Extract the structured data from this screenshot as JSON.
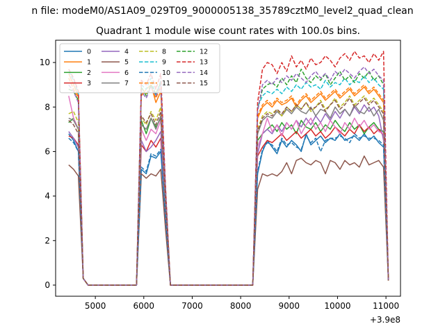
{
  "suptitle": "n file: modeM0/AS1A09_029T09_9000005138_35789cztM0_level2_quad_clean",
  "chart_data": {
    "type": "line",
    "title": "Quadrant 1 module wise count rates with 100.0s bins.",
    "xlabel": "",
    "ylabel": "",
    "x_offset_label": "+3.9e8",
    "xlim": [
      4180,
      11300
    ],
    "ylim": [
      -0.5,
      11.0
    ],
    "xticks": [
      5000,
      6000,
      7000,
      8000,
      9000,
      10000,
      11000
    ],
    "yticks": [
      0,
      2,
      4,
      6,
      8,
      10
    ],
    "grid": false,
    "legend": {
      "placement": "top-left",
      "columns": 4
    },
    "segments": {
      "seg1": [
        4450,
        4550,
        4650
      ],
      "seg2": [
        5950,
        6050,
        6150,
        6250,
        6350,
        6450
      ],
      "seg3": [
        8350,
        8450,
        8550,
        8650,
        8750,
        8850,
        8950,
        9050,
        9150,
        9250,
        9350,
        9450,
        9550,
        9650,
        9750,
        9850,
        9950,
        10050,
        10150,
        10250,
        10350,
        10450,
        10550,
        10650,
        10750,
        10850,
        10950
      ]
    },
    "series": [
      {
        "name": "0",
        "color": "#1f77b4",
        "dash": false,
        "seg1": [
          6.8,
          6.5,
          6.0
        ],
        "seg2": [
          5.2,
          5.0,
          5.8,
          5.7,
          6.0,
          3.0
        ],
        "seg3": [
          5.0,
          6.0,
          6.5,
          6.2,
          5.9,
          6.5,
          6.2,
          6.5,
          6.3,
          6.0,
          6.8,
          6.3,
          6.5,
          6.7,
          6.4,
          6.6,
          6.5,
          6.8,
          6.5,
          6.6,
          6.7,
          6.5,
          6.8,
          6.5,
          6.7,
          6.4,
          6.2
        ]
      },
      {
        "name": "1",
        "color": "#ff7f0e",
        "dash": false,
        "seg1": [
          9.5,
          9.0,
          8.5
        ],
        "seg2": [
          8.5,
          8.8,
          9.0,
          8.2,
          8.7,
          4.0
        ],
        "seg3": [
          7.5,
          8.0,
          8.2,
          8.0,
          8.3,
          8.1,
          8.2,
          8.4,
          8.0,
          8.3,
          8.5,
          8.2,
          8.4,
          8.6,
          8.3,
          8.5,
          8.7,
          8.4,
          8.6,
          8.8,
          8.5,
          8.7,
          8.9,
          8.6,
          8.8,
          8.5,
          8.2
        ]
      },
      {
        "name": "2",
        "color": "#2ca02c",
        "dash": false,
        "seg1": [
          7.3,
          7.5,
          7.0
        ],
        "seg2": [
          7.4,
          6.8,
          7.5,
          7.1,
          7.5,
          3.5
        ],
        "seg3": [
          6.5,
          6.8,
          7.0,
          7.2,
          6.9,
          7.3,
          7.0,
          7.2,
          6.8,
          7.4,
          7.1,
          7.0,
          7.3,
          6.9,
          7.2,
          7.0,
          7.4,
          7.1,
          6.9,
          7.3,
          7.0,
          7.2,
          6.8,
          7.1,
          7.3,
          7.0,
          6.9
        ]
      },
      {
        "name": "3",
        "color": "#d62728",
        "dash": false,
        "seg1": [
          6.7,
          6.6,
          6.3
        ],
        "seg2": [
          6.3,
          6.0,
          6.5,
          6.2,
          6.6,
          3.2
        ],
        "seg3": [
          5.8,
          6.2,
          6.5,
          6.4,
          6.6,
          6.8,
          6.5,
          6.7,
          6.9,
          6.6,
          6.8,
          7.0,
          6.7,
          6.9,
          6.6,
          6.8,
          7.1,
          6.9,
          6.7,
          7.0,
          6.8,
          7.2,
          6.9,
          7.1,
          6.8,
          7.0,
          6.7
        ]
      },
      {
        "name": "4",
        "color": "#9467bd",
        "dash": false,
        "seg1": [
          6.9,
          6.6,
          6.2
        ],
        "seg2": [
          6.5,
          6.0,
          6.2,
          6.5,
          6.9,
          3.2
        ],
        "seg3": [
          5.9,
          6.8,
          7.0,
          6.8,
          7.2,
          6.9,
          7.3,
          7.0,
          7.4,
          7.1,
          7.5,
          7.2,
          7.6,
          7.3,
          7.7,
          7.4,
          7.8,
          7.5,
          7.9,
          7.6,
          8.0,
          7.7,
          8.1,
          7.8,
          8.0,
          7.6,
          6.5
        ]
      },
      {
        "name": "5",
        "color": "#8c564b",
        "dash": false,
        "seg1": [
          5.4,
          5.2,
          4.9
        ],
        "seg2": [
          5.0,
          4.8,
          5.0,
          4.9,
          5.2,
          2.5
        ],
        "seg3": [
          4.3,
          5.0,
          4.9,
          5.0,
          4.9,
          5.1,
          5.5,
          5.0,
          5.6,
          5.7,
          5.5,
          5.4,
          5.6,
          5.5,
          5.0,
          5.6,
          5.5,
          5.2,
          5.6,
          5.4,
          5.5,
          5.3,
          5.8,
          5.4,
          5.5,
          5.6,
          5.3
        ]
      },
      {
        "name": "6",
        "color": "#e377c2",
        "dash": false,
        "seg1": [
          8.5,
          7.5,
          7.0
        ],
        "seg2": [
          7.0,
          6.5,
          7.0,
          6.8,
          7.4,
          3.5
        ],
        "seg3": [
          6.2,
          6.8,
          7.5,
          6.9,
          7.2,
          6.7,
          7.3,
          7.0,
          7.4,
          6.8,
          7.2,
          7.5,
          7.0,
          7.3,
          6.9,
          7.4,
          7.1,
          6.8,
          7.3,
          7.0,
          7.5,
          7.1,
          7.4,
          7.0,
          7.2,
          6.9,
          6.8
        ]
      },
      {
        "name": "7",
        "color": "#7f7f7f",
        "dash": false,
        "seg1": [
          7.5,
          7.4,
          7.0
        ],
        "seg2": [
          7.2,
          7.0,
          7.5,
          7.0,
          7.6,
          3.6
        ],
        "seg3": [
          6.8,
          7.4,
          7.6,
          7.5,
          7.8,
          7.6,
          7.9,
          7.7,
          8.0,
          7.8,
          7.7,
          8.0,
          7.6,
          7.9,
          7.8,
          7.5,
          8.0,
          7.7,
          7.9,
          7.6,
          8.1,
          7.8,
          7.7,
          8.0,
          7.6,
          7.9,
          7.4
        ]
      },
      {
        "name": "8",
        "color": "#bcbd22",
        "dash": true,
        "seg1": [
          7.7,
          7.8,
          7.3
        ],
        "seg2": [
          7.5,
          7.2,
          7.8,
          7.4,
          8.0,
          3.8
        ],
        "seg3": [
          7.0,
          7.6,
          7.8,
          7.7,
          7.9,
          7.6,
          8.0,
          7.8,
          8.1,
          7.9,
          8.2,
          7.8,
          8.0,
          8.3,
          7.9,
          8.1,
          8.4,
          8.0,
          8.2,
          8.5,
          8.1,
          8.3,
          8.5,
          8.2,
          8.4,
          8.1,
          7.8
        ]
      },
      {
        "name": "9",
        "color": "#17becf",
        "dash": true,
        "seg1": [
          9.6,
          9.2,
          8.6
        ],
        "seg2": [
          9.0,
          8.8,
          9.3,
          8.5,
          9.2,
          4.2
        ],
        "seg3": [
          8.0,
          8.5,
          8.7,
          8.6,
          8.8,
          8.6,
          8.9,
          8.7,
          9.0,
          8.8,
          9.1,
          8.9,
          9.0,
          8.8,
          9.2,
          8.9,
          9.1,
          9.0,
          9.3,
          9.0,
          9.2,
          9.1,
          9.4,
          9.1,
          9.3,
          9.0,
          8.8
        ]
      },
      {
        "name": "10",
        "color": "#1f77b4",
        "dash": true,
        "seg1": [
          6.6,
          6.4,
          6.0
        ],
        "seg2": [
          5.3,
          5.1,
          5.9,
          5.8,
          6.1,
          3.0
        ],
        "seg3": [
          5.1,
          6.1,
          6.4,
          6.3,
          6.0,
          6.6,
          6.3,
          6.4,
          6.2,
          6.1,
          6.7,
          6.4,
          6.6,
          6.0,
          6.5,
          6.6,
          6.6,
          6.7,
          6.6,
          6.4,
          6.8,
          6.6,
          6.7,
          6.6,
          6.6,
          6.5,
          6.3
        ]
      },
      {
        "name": "11",
        "color": "#ff7f0e",
        "dash": true,
        "seg1": [
          9.3,
          8.8,
          8.4
        ],
        "seg2": [
          8.6,
          8.6,
          8.9,
          8.4,
          8.9,
          4.1
        ],
        "seg3": [
          7.6,
          8.1,
          8.3,
          8.1,
          8.4,
          8.2,
          8.3,
          8.5,
          8.1,
          8.4,
          8.6,
          8.3,
          8.5,
          8.7,
          8.4,
          8.6,
          8.8,
          8.5,
          8.7,
          8.9,
          8.6,
          8.8,
          9.0,
          8.7,
          8.9,
          8.6,
          8.3
        ]
      },
      {
        "name": "12",
        "color": "#2ca02c",
        "dash": true,
        "seg1": [
          8.8,
          8.7,
          8.3
        ],
        "seg2": [
          8.9,
          8.5,
          9.0,
          8.6,
          9.1,
          4.3
        ],
        "seg3": [
          7.9,
          8.8,
          9.0,
          9.1,
          8.9,
          9.3,
          9.0,
          9.4,
          9.1,
          9.7,
          9.3,
          9.1,
          9.4,
          9.2,
          9.5,
          9.0,
          9.3,
          9.6,
          9.2,
          9.4,
          9.1,
          9.5,
          9.3,
          9.6,
          9.2,
          9.4,
          9.0
        ]
      },
      {
        "name": "13",
        "color": "#d62728",
        "dash": true,
        "seg1": [
          9.7,
          9.3,
          8.7
        ],
        "seg2": [
          9.2,
          9.0,
          9.5,
          8.8,
          9.5,
          4.4
        ],
        "seg3": [
          8.2,
          9.7,
          10.0,
          9.9,
          9.5,
          10.0,
          9.6,
          10.3,
          9.8,
          10.1,
          9.7,
          10.2,
          9.9,
          10.0,
          10.3,
          10.1,
          9.8,
          10.2,
          10.4,
          10.1,
          10.5,
          10.2,
          10.3,
          10.0,
          10.4,
          10.1,
          10.5
        ]
      },
      {
        "name": "14",
        "color": "#9467bd",
        "dash": true,
        "seg1": [
          9.0,
          8.7,
          8.2
        ],
        "seg2": [
          8.7,
          8.4,
          8.9,
          8.5,
          9.0,
          4.2
        ],
        "seg3": [
          7.8,
          9.0,
          9.2,
          9.0,
          9.3,
          9.1,
          9.4,
          9.2,
          9.5,
          9.3,
          9.1,
          9.4,
          9.6,
          9.3,
          9.5,
          9.2,
          9.6,
          9.4,
          9.7,
          9.5,
          9.3,
          9.6,
          9.8,
          9.5,
          9.7,
          9.4,
          9.2
        ]
      },
      {
        "name": "15",
        "color": "#8c564b",
        "dash": true,
        "seg1": [
          7.4,
          7.2,
          6.8
        ],
        "seg2": [
          7.6,
          7.3,
          7.7,
          7.2,
          7.8,
          3.8
        ],
        "seg3": [
          6.9,
          7.5,
          7.7,
          7.6,
          7.9,
          7.7,
          8.0,
          7.8,
          8.1,
          7.9,
          8.2,
          7.9,
          8.0,
          8.2,
          7.8,
          8.1,
          8.3,
          7.9,
          8.1,
          8.4,
          8.0,
          8.2,
          8.4,
          8.1,
          8.3,
          8.0,
          7.7
        ]
      }
    ]
  }
}
